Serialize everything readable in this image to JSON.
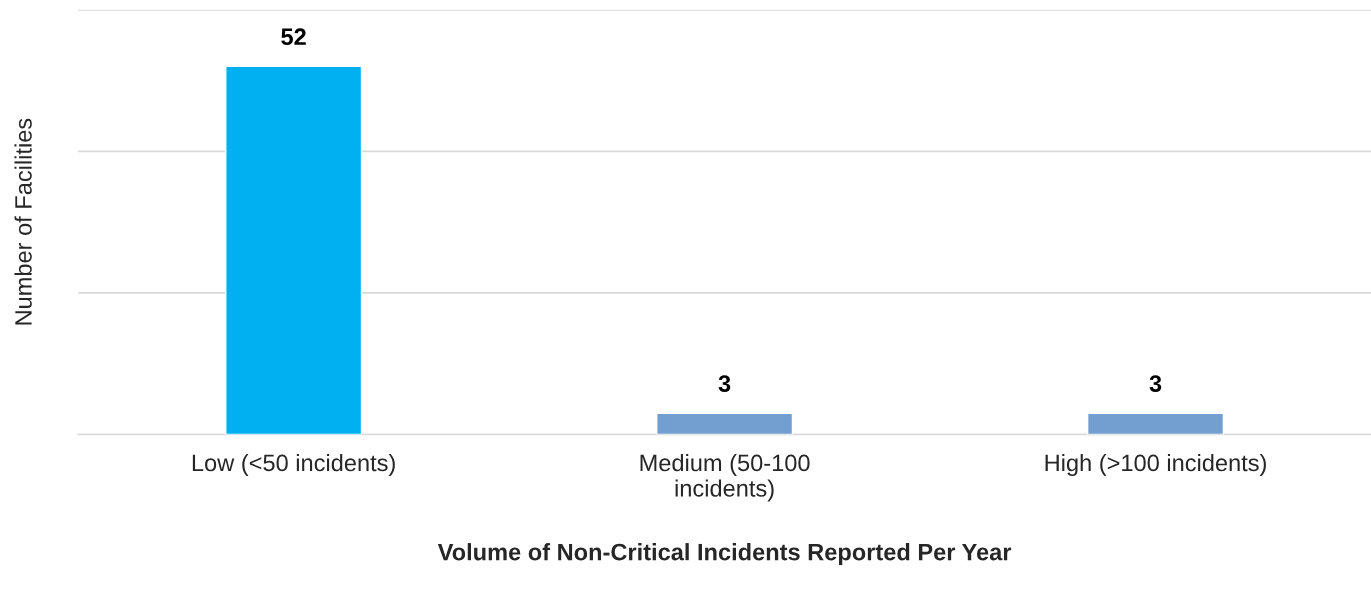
{
  "chart_data": {
    "type": "bar",
    "xlabel": "Volume of Non-Critical Incidents Reported Per Year",
    "ylabel": "Number of Facilities",
    "categories": [
      "Low (<50 incidents)",
      "Medium (50-100\nincidents)",
      "High (>100 incidents)"
    ],
    "values": [
      52,
      3,
      3
    ],
    "colors": [
      "#00b0f0",
      "#729fcf",
      "#729fcf"
    ],
    "data_labels": true,
    "ylim": [
      0,
      60
    ],
    "yticks": [
      {
        "value": 0,
        "label": null
      },
      {
        "value": 20,
        "label": null
      },
      {
        "value": 40,
        "label": null
      },
      {
        "value": 60,
        "label": null
      }
    ],
    "tick_labels": "x",
    "grid": "y",
    "legend": false
  }
}
